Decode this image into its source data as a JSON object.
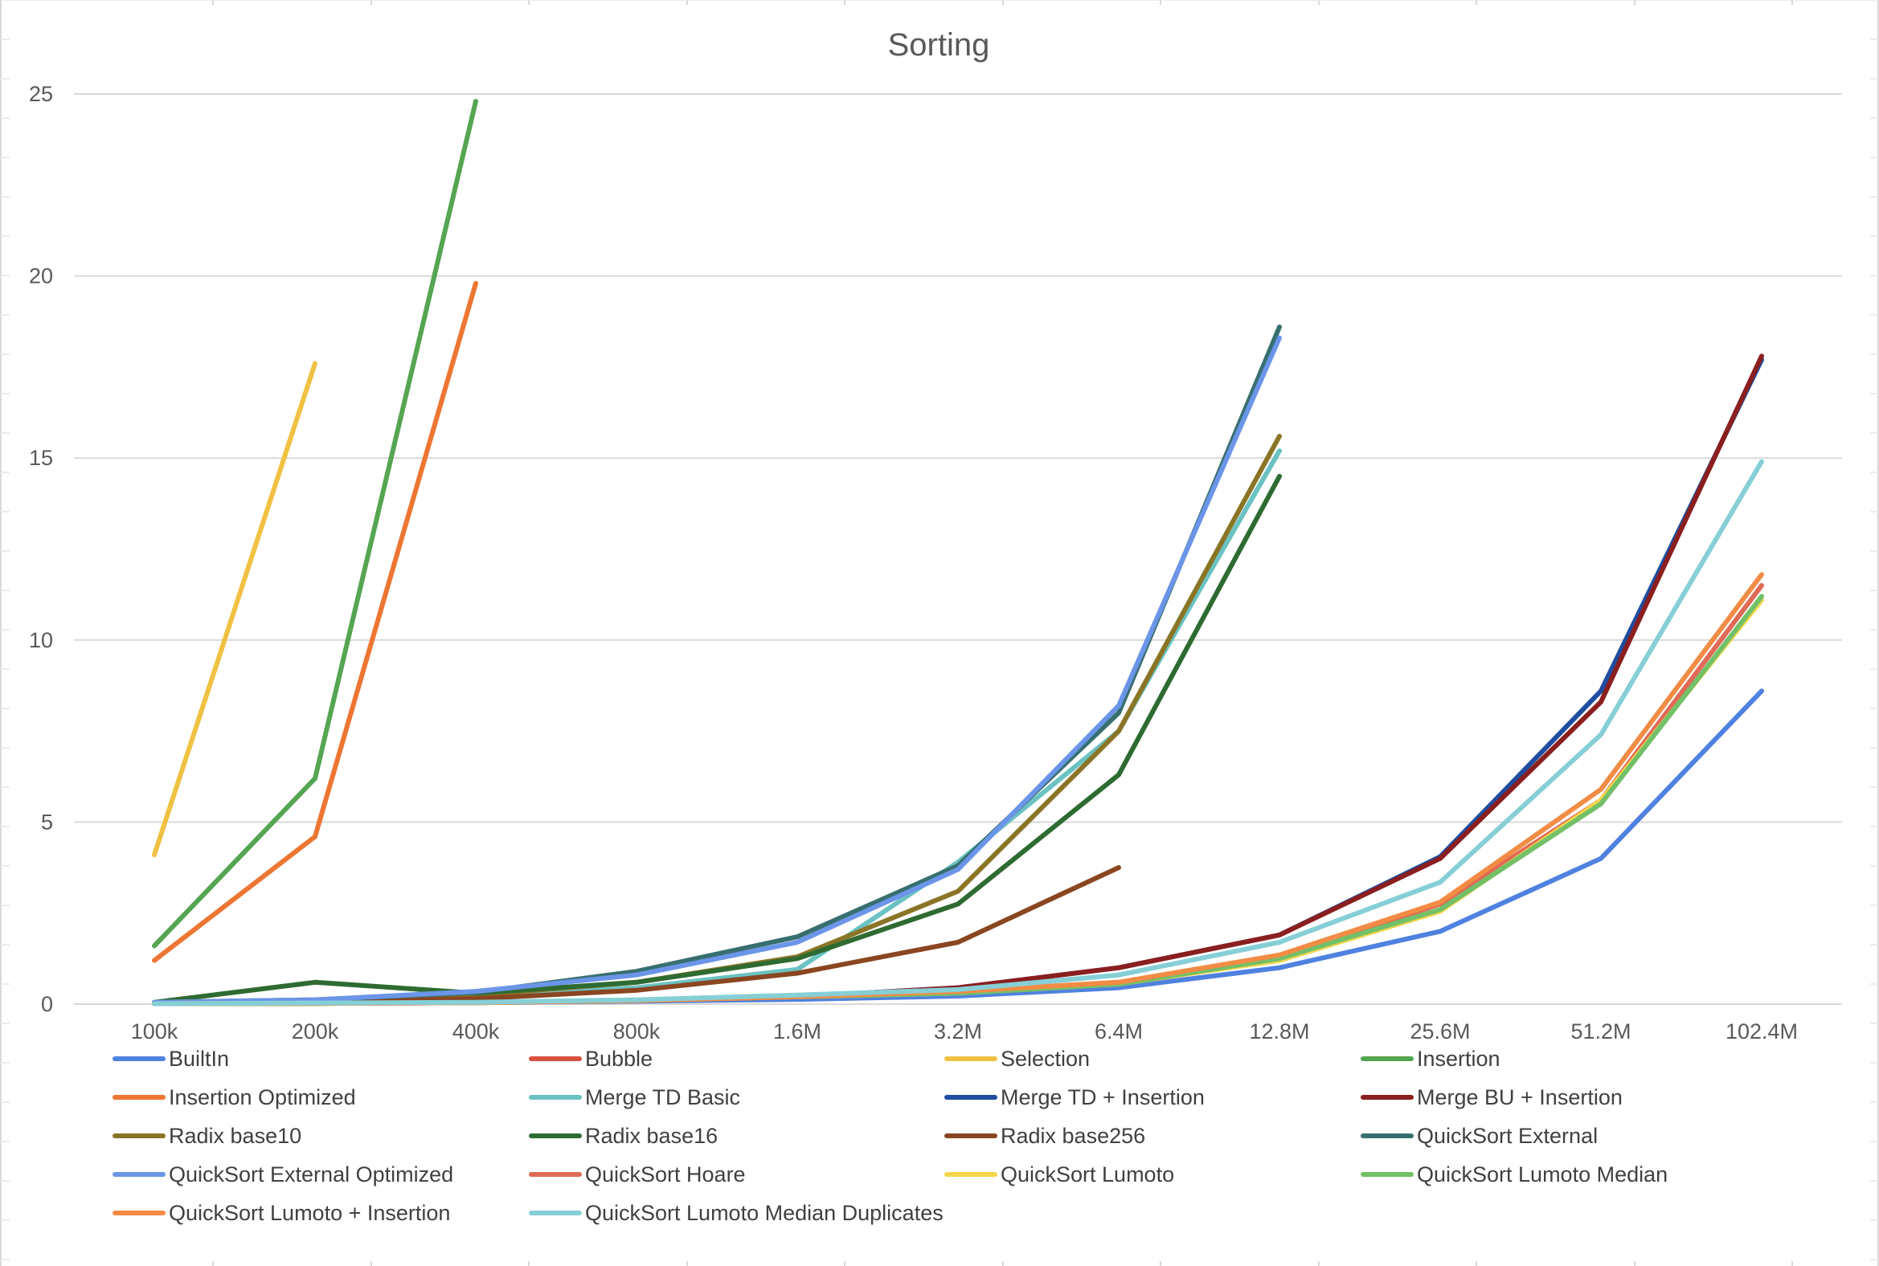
{
  "chart_data": {
    "type": "line",
    "title": "Sorting",
    "xlabel": "",
    "ylabel": "",
    "categories": [
      "100k",
      "200k",
      "400k",
      "800k",
      "1.6M",
      "3.2M",
      "6.4M",
      "12.8M",
      "25.6M",
      "51.2M",
      "102.4M"
    ],
    "ylim": [
      0,
      25
    ],
    "yticks": [
      "0",
      "5",
      "10",
      "15",
      "20",
      "25"
    ],
    "grid": true,
    "legend": "bottom",
    "series": [
      {
        "name": "BuiltIn",
        "color": "#4f81e0",
        "values": [
          0.01,
          0.02,
          0.04,
          0.08,
          0.13,
          0.22,
          0.45,
          1.0,
          2.0,
          4.0,
          8.6
        ]
      },
      {
        "name": "Bubble",
        "color": "#d9503f",
        "values": [
          null,
          null,
          null,
          null,
          null,
          null,
          null,
          null,
          null,
          null,
          null
        ]
      },
      {
        "name": "Selection",
        "color": "#f0c142",
        "values": [
          4.1,
          17.6,
          null,
          null,
          null,
          null,
          null,
          null,
          null,
          null,
          null
        ]
      },
      {
        "name": "Insertion",
        "color": "#55a552",
        "values": [
          1.6,
          6.2,
          24.8,
          null,
          null,
          null,
          null,
          null,
          null,
          null,
          null
        ]
      },
      {
        "name": "Insertion Optimized",
        "color": "#ed7632",
        "values": [
          1.2,
          4.6,
          19.8,
          null,
          null,
          null,
          null,
          null,
          null,
          null,
          null
        ]
      },
      {
        "name": "Merge TD Basic",
        "color": "#6bc2c2",
        "values": [
          0.03,
          0.08,
          0.2,
          0.45,
          0.95,
          3.9,
          7.5,
          15.2,
          null,
          null,
          null
        ]
      },
      {
        "name": "Merge TD + Insertion",
        "color": "#1f4da0",
        "values": [
          0.01,
          0.02,
          0.05,
          0.1,
          0.2,
          0.45,
          1.0,
          1.9,
          4.05,
          8.6,
          17.7
        ]
      },
      {
        "name": "Merge BU + Insertion",
        "color": "#8b1e1e",
        "values": [
          0.01,
          0.02,
          0.05,
          0.1,
          0.2,
          0.45,
          1.0,
          1.9,
          4.0,
          8.3,
          17.8
        ]
      },
      {
        "name": "Radix base10",
        "color": "#8a7526",
        "values": [
          0.05,
          0.1,
          0.25,
          0.6,
          1.3,
          3.1,
          7.5,
          15.6,
          null,
          null,
          null
        ]
      },
      {
        "name": "Radix base16",
        "color": "#2e6b32",
        "values": [
          0.05,
          0.6,
          0.3,
          0.6,
          1.25,
          2.75,
          6.3,
          14.5,
          null,
          null,
          null
        ]
      },
      {
        "name": "Radix base256",
        "color": "#8a4620",
        "values": [
          0.03,
          0.07,
          0.15,
          0.38,
          0.85,
          1.7,
          3.75,
          null,
          null,
          null,
          null
        ]
      },
      {
        "name": "QuickSort External",
        "color": "#376f6f",
        "values": [
          0.05,
          0.12,
          0.32,
          0.9,
          1.85,
          3.8,
          8.0,
          18.6,
          null,
          null,
          null
        ]
      },
      {
        "name": "QuickSort External Optimized",
        "color": "#6b95e8",
        "values": [
          0.05,
          0.12,
          0.35,
          0.8,
          1.7,
          3.7,
          8.2,
          18.3,
          null,
          null,
          null
        ]
      },
      {
        "name": "QuickSort Hoare",
        "color": "#e06a56",
        "values": [
          0.01,
          0.02,
          0.04,
          0.1,
          0.2,
          0.35,
          0.6,
          1.3,
          2.75,
          5.6,
          11.5
        ]
      },
      {
        "name": "QuickSort Lumoto",
        "color": "#f2d548",
        "values": [
          0.01,
          0.02,
          0.04,
          0.1,
          0.2,
          0.3,
          0.55,
          1.2,
          2.55,
          5.6,
          11.1
        ]
      },
      {
        "name": "QuickSort Lumoto Median",
        "color": "#72c068",
        "values": [
          0.01,
          0.02,
          0.04,
          0.1,
          0.2,
          0.3,
          0.55,
          1.25,
          2.6,
          5.5,
          11.2
        ]
      },
      {
        "name": "QuickSort Lumoto + Insertion",
        "color": "#f28c45",
        "values": [
          0.01,
          0.02,
          0.04,
          0.1,
          0.2,
          0.35,
          0.6,
          1.35,
          2.8,
          5.9,
          11.8
        ]
      },
      {
        "name": "QuickSort Lumoto Median Duplicates",
        "color": "#86cfd6",
        "values": [
          0.01,
          0.03,
          0.05,
          0.12,
          0.25,
          0.4,
          0.8,
          1.7,
          3.35,
          7.4,
          14.9
        ]
      }
    ]
  }
}
